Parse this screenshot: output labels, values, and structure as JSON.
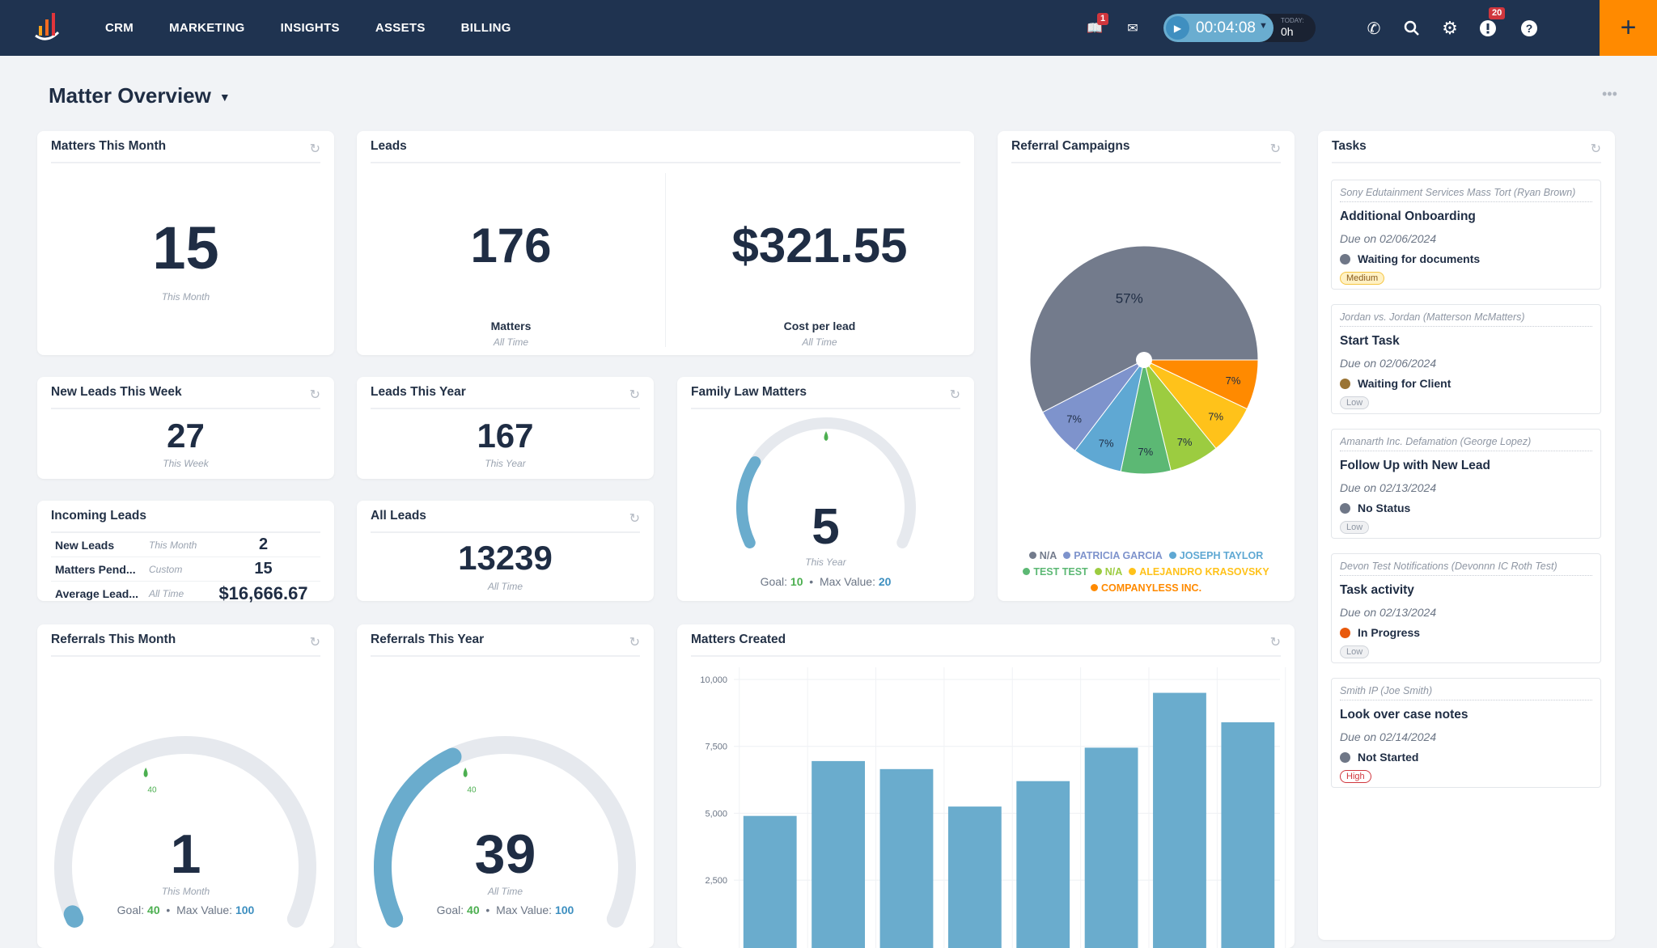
{
  "nav": {
    "items": [
      "CRM",
      "MARKETING",
      "INSIGHTS",
      "ASSETS",
      "BILLING"
    ],
    "inbox_badge": "1",
    "alerts_badge": "20",
    "timer": "00:04:08",
    "today_label": "TODAY:",
    "today_value": "0h"
  },
  "page": {
    "title": "Matter Overview"
  },
  "matters_month": {
    "title": "Matters This Month",
    "value": "15",
    "period": "This Month"
  },
  "leads": {
    "title": "Leads",
    "matters_value": "176",
    "matters_label": "Matters",
    "matters_period": "All Time",
    "cost_value": "$321.55",
    "cost_label": "Cost per lead",
    "cost_period": "All Time"
  },
  "new_leads_week": {
    "title": "New Leads This Week",
    "value": "27",
    "period": "This Week"
  },
  "leads_year": {
    "title": "Leads This Year",
    "value": "167",
    "period": "This Year"
  },
  "incoming": {
    "title": "Incoming Leads",
    "rows": [
      {
        "name": "New Leads",
        "period": "This Month",
        "value": "2"
      },
      {
        "name": "Matters Pend...",
        "period": "Custom",
        "value": "15"
      },
      {
        "name": "Average Lead...",
        "period": "All Time",
        "value": "$16,666.67"
      }
    ]
  },
  "all_leads": {
    "title": "All Leads",
    "value": "13239",
    "period": "All Time"
  },
  "family_law": {
    "title": "Family Law Matters",
    "value": 5,
    "value_text": "5",
    "period": "This Year",
    "goal_label": "Goal:",
    "goal": 10,
    "goal_text": "10",
    "max_label": "Max Value:",
    "max": 20,
    "max_text": "20"
  },
  "referrals_month": {
    "title": "Referrals This Month",
    "value": 1,
    "value_text": "1",
    "period": "This Month",
    "goal_label": "Goal:",
    "goal": 40,
    "goal_text": "40",
    "max_label": "Max Value:",
    "max": 100,
    "max_text": "100"
  },
  "referrals_year": {
    "title": "Referrals This Year",
    "value": 39,
    "value_text": "39",
    "period": "All Time",
    "goal_label": "Goal:",
    "goal": 40,
    "goal_text": "40",
    "max_label": "Max Value:",
    "max": 100,
    "max_text": "100"
  },
  "referral_campaigns": {
    "title": "Referral Campaigns"
  },
  "tasks": {
    "title": "Tasks",
    "items": [
      {
        "matter": "Sony Edutainment Services Mass Tort (Ryan Brown)",
        "title": "Additional Onboarding",
        "due": "Due on 02/06/2024",
        "status": "Waiting for documents",
        "status_color": "#6f7787",
        "priority": "Medium"
      },
      {
        "matter": "Jordan vs. Jordan (Matterson McMatters)",
        "title": "Start Task",
        "due": "Due on 02/06/2024",
        "status": "Waiting for Client",
        "status_color": "#9a7434",
        "priority": "Low"
      },
      {
        "matter": "Amanarth Inc. Defamation (George Lopez)",
        "title": "Follow Up with New Lead",
        "due": "Due on 02/13/2024",
        "status": "No Status",
        "status_color": "#6f7787",
        "priority": "Low"
      },
      {
        "matter": "Devon Test Notifications (Devonnn IC Roth Test)",
        "title": "Task activity",
        "due": "Due on 02/13/2024",
        "status": "In Progress",
        "status_color": "#e8590c",
        "priority": "Low"
      },
      {
        "matter": "Smith IP (Joe Smith)",
        "title": "Look over case notes",
        "due": "Due on 02/14/2024",
        "status": "Not Started",
        "status_color": "#6f7787",
        "priority": "High"
      }
    ]
  },
  "chart_data": [
    {
      "type": "pie",
      "title": "Referral Campaigns",
      "slices": [
        {
          "label": "N/A",
          "value": 57,
          "color": "#737b8c"
        },
        {
          "label": "PATRICIA GARCIA",
          "value": 7,
          "color": "#7e93cc"
        },
        {
          "label": "JOSEPH TAYLOR",
          "value": 7,
          "color": "#5fa8d3"
        },
        {
          "label": "TEST TEST",
          "value": 7,
          "color": "#5cb874"
        },
        {
          "label": "N/A",
          "value": 7,
          "color": "#9ccc40"
        },
        {
          "label": "ALEJANDRO KRASOVSKY",
          "value": 7,
          "color": "#ffc21a"
        },
        {
          "label": "COMPANYLESS INC.",
          "value": 7,
          "color": "#ff8a00"
        }
      ],
      "data_labels": [
        "57%",
        "7%",
        "7%",
        "7%",
        "7%",
        "7%",
        "7%"
      ],
      "legend": "bottom"
    },
    {
      "type": "bar",
      "title": "Matters Created",
      "values": [
        4900,
        6950,
        6650,
        5250,
        6200,
        7450,
        9500,
        8400
      ],
      "yticks": [
        "2,500",
        "5,000",
        "7,500",
        "10,000"
      ],
      "ytick_values": [
        2500,
        5000,
        7500,
        10000
      ],
      "ylim": [
        0,
        10000
      ],
      "color": "#6aaccd",
      "grid": true
    }
  ]
}
